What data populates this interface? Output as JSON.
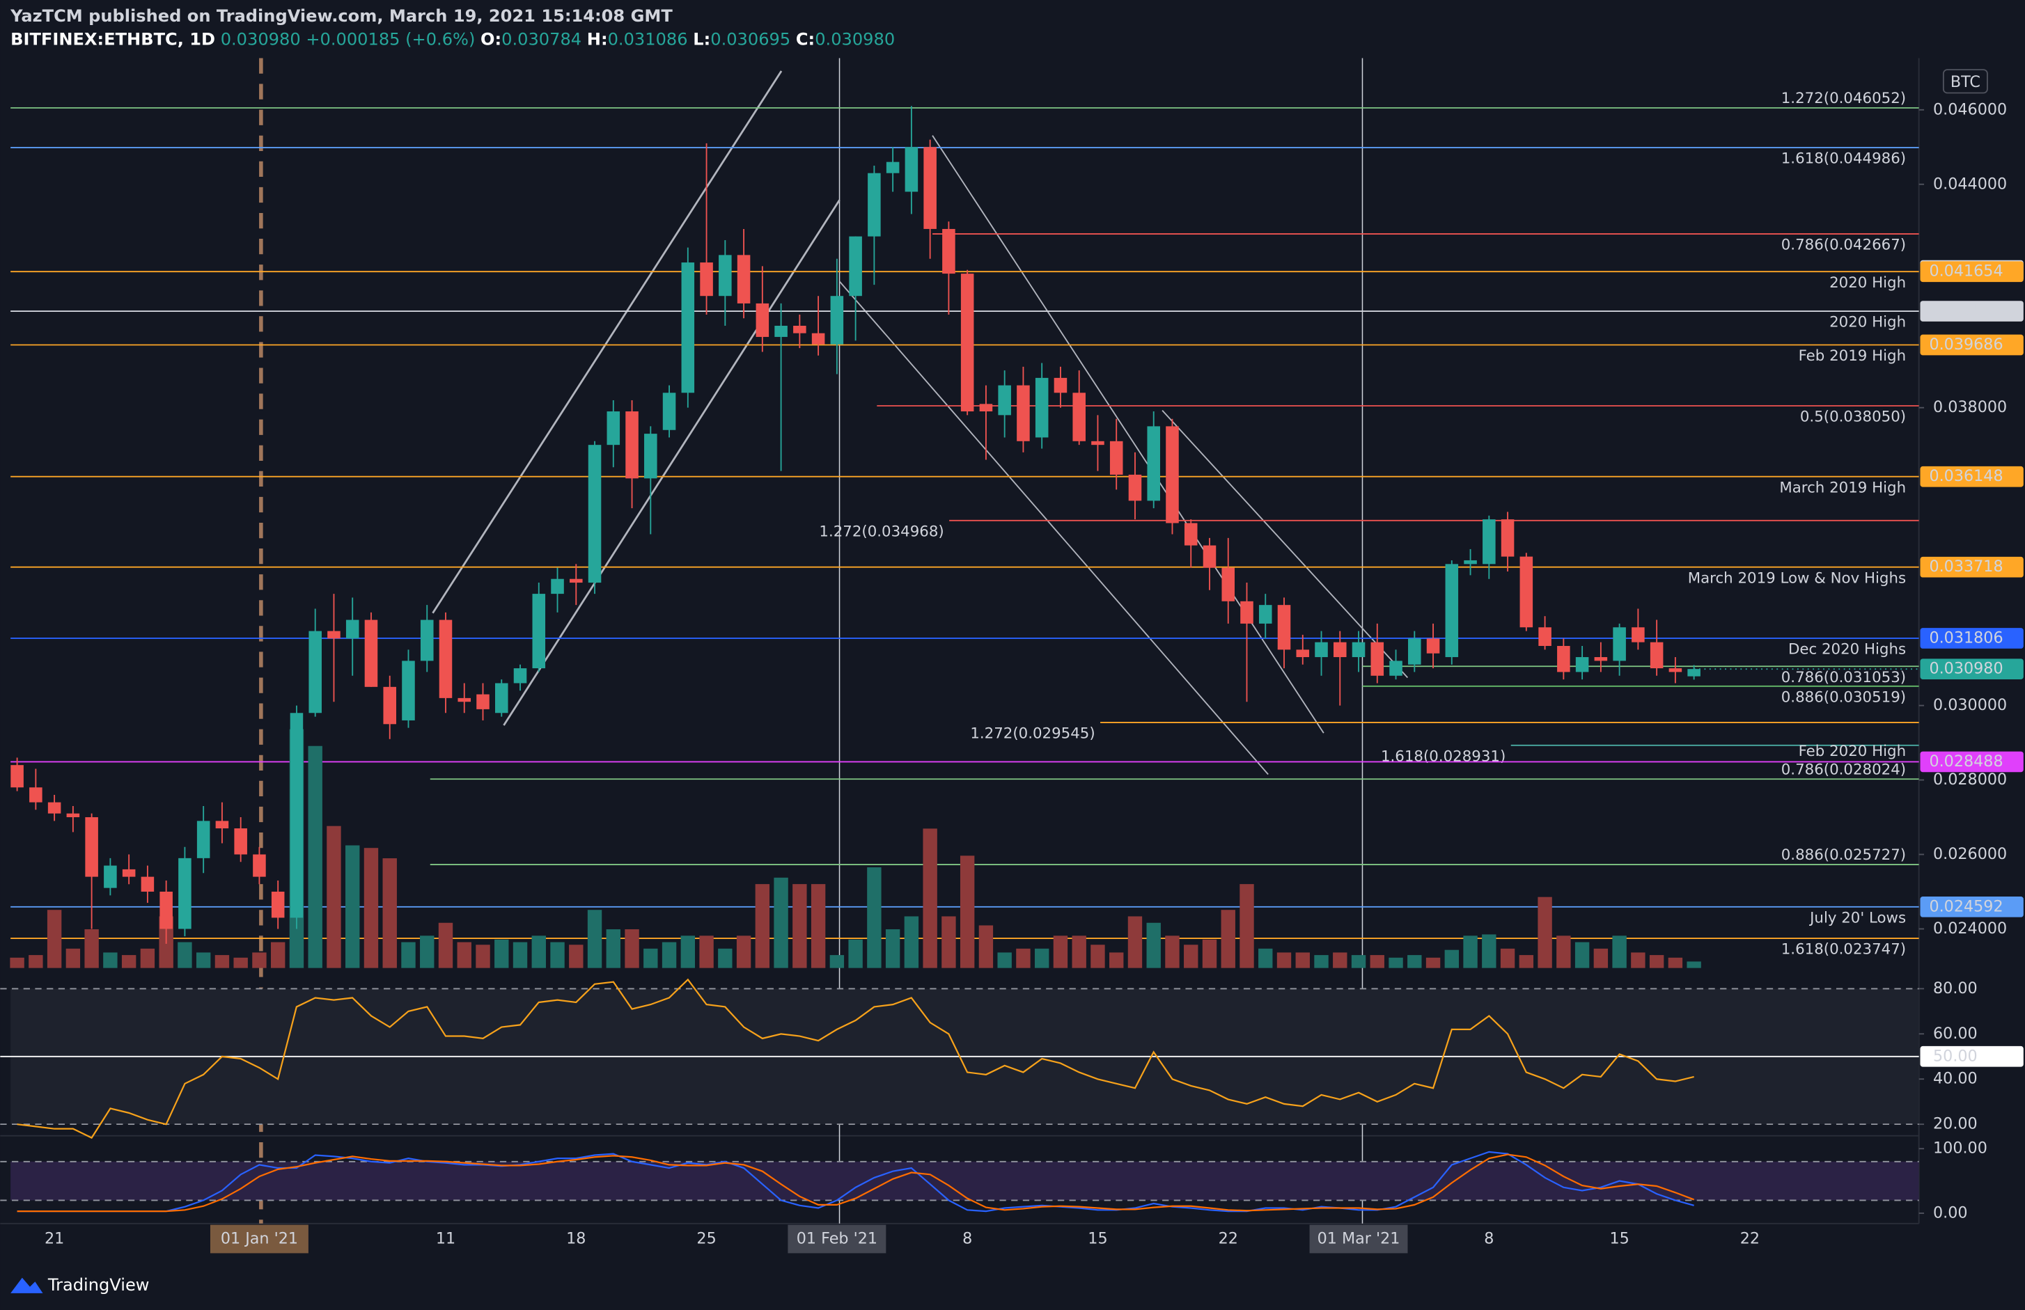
{
  "header": {
    "author": "YazTCM published on TradingView.com, March 19, 2021 15:14:08 GMT",
    "symbol": "BITFINEX:ETHBTC, 1D",
    "last": "0.030980",
    "change": "+0.000185 (+0.6%)",
    "o_label": "O:",
    "open": "0.030784",
    "h_label": "H:",
    "high": "0.031086",
    "l_label": "L:",
    "low": "0.030695",
    "c_label": "C:",
    "close": "0.030980"
  },
  "footer": "TradingView",
  "chart_data": [
    {
      "type": "candlestick",
      "currency": "BTC",
      "categories": [
        null,
        null,
        "21",
        null,
        null,
        null,
        null,
        null,
        null,
        null,
        null,
        null,
        null,
        "01 Jan '21",
        null,
        null,
        null,
        null,
        null,
        null,
        null,
        null,
        null,
        "11",
        null,
        null,
        null,
        null,
        null,
        null,
        "18",
        null,
        null,
        null,
        null,
        null,
        null,
        "25",
        null,
        null,
        null,
        null,
        null,
        null,
        "01 Feb '21",
        null,
        null,
        null,
        null,
        null,
        null,
        "8",
        null,
        null,
        null,
        null,
        null,
        null,
        "15",
        null,
        null,
        null,
        null,
        null,
        null,
        "22",
        null,
        null,
        null,
        null,
        null,
        null,
        "01 Mar '21",
        null,
        null,
        null,
        null,
        null,
        null,
        "8",
        null,
        null,
        null,
        null,
        null,
        null,
        "15",
        null,
        null,
        null,
        null,
        null,
        null,
        "22"
      ],
      "open": [
        0.0284,
        0.0278,
        0.0274,
        0.0271,
        0.027,
        0.0251,
        0.0256,
        0.0254,
        0.025,
        0.024,
        0.0259,
        0.0269,
        0.0267,
        0.026,
        0.025,
        0.0243,
        0.0298,
        0.032,
        0.0318,
        0.0323,
        0.0305,
        0.0296,
        0.0312,
        0.0323,
        0.0302,
        0.0303,
        0.0298,
        0.0306,
        0.031,
        0.033,
        0.0334,
        0.0333,
        0.037,
        0.0379,
        0.0361,
        0.0374,
        0.0384,
        0.0419,
        0.041,
        0.0421,
        0.0408,
        0.0399,
        0.0402,
        0.04,
        0.0397,
        0.041,
        0.0426,
        0.0443,
        0.0438,
        0.045,
        0.0428,
        0.0416,
        0.0381,
        0.0378,
        0.0386,
        0.0372,
        0.0388,
        0.0384,
        0.0371,
        0.0371,
        0.0362,
        0.0355,
        0.0375,
        0.0349,
        0.0343,
        0.0337,
        0.0328,
        0.0322,
        0.0327,
        0.0315,
        0.0313,
        0.0317,
        0.0313,
        0.0317,
        0.0308,
        0.0311,
        0.0318,
        0.0313,
        0.0338,
        0.0338,
        0.035,
        0.034,
        0.0321,
        0.0316,
        0.0309,
        0.0313,
        0.0312,
        0.0321,
        0.0317,
        0.031,
        0.030784,
        null,
        null,
        null
      ],
      "high": [
        0.0286,
        0.0283,
        0.0276,
        0.0273,
        0.0271,
        0.0259,
        0.026,
        0.0257,
        0.0253,
        0.0262,
        0.0273,
        0.0274,
        0.027,
        0.0262,
        0.0253,
        0.03,
        0.0326,
        0.033,
        0.0329,
        0.0325,
        0.0308,
        0.0315,
        0.0327,
        0.0325,
        0.0306,
        0.0306,
        0.0307,
        0.0311,
        0.0333,
        0.0337,
        0.0338,
        0.0371,
        0.0382,
        0.0382,
        0.0375,
        0.0386,
        0.0423,
        0.0451,
        0.0425,
        0.0428,
        0.0418,
        0.0408,
        0.0405,
        0.041,
        0.042,
        0.0426,
        0.0445,
        0.045,
        0.0461,
        0.0452,
        0.043,
        0.0417,
        0.0386,
        0.039,
        0.0391,
        0.0392,
        0.0391,
        0.039,
        0.0378,
        0.0377,
        0.0368,
        0.0379,
        0.0377,
        0.035,
        0.0345,
        0.0345,
        0.0333,
        0.033,
        0.0329,
        0.0319,
        0.032,
        0.032,
        0.032,
        0.0322,
        0.0315,
        0.032,
        0.0322,
        0.0339,
        0.0342,
        0.0351,
        0.0352,
        0.0341,
        0.0324,
        0.0318,
        0.0316,
        0.0317,
        0.0322,
        0.0326,
        0.0323,
        0.0313,
        0.031086,
        null,
        null,
        null
      ],
      "low": [
        0.0277,
        0.0272,
        0.0269,
        0.0266,
        0.024,
        0.0249,
        0.0252,
        0.0247,
        0.0236,
        0.0238,
        0.0255,
        0.0263,
        0.0258,
        0.0252,
        0.024,
        0.024,
        0.0297,
        0.0301,
        0.0308,
        0.0305,
        0.0291,
        0.0294,
        0.0309,
        0.0298,
        0.0298,
        0.0296,
        0.0297,
        0.0304,
        0.0309,
        0.0325,
        0.0327,
        0.033,
        0.0364,
        0.0353,
        0.0346,
        0.0372,
        0.038,
        0.0405,
        0.0402,
        0.0404,
        0.0395,
        0.0363,
        0.0396,
        0.0394,
        0.0389,
        0.0398,
        0.0413,
        0.0438,
        0.0432,
        0.042,
        0.0405,
        0.0378,
        0.0366,
        0.0372,
        0.0368,
        0.0369,
        0.038,
        0.037,
        0.0363,
        0.0358,
        0.035,
        0.0353,
        0.0346,
        0.0337,
        0.0331,
        0.0322,
        0.0301,
        0.0318,
        0.031,
        0.0311,
        0.0308,
        0.03,
        0.0309,
        0.0306,
        0.0307,
        0.0309,
        0.031,
        0.0311,
        0.0335,
        0.0334,
        0.0336,
        0.032,
        0.0315,
        0.0307,
        0.0307,
        0.0309,
        0.0308,
        0.0315,
        0.0308,
        0.0306,
        0.030695,
        null,
        null,
        null
      ],
      "close": [
        0.0278,
        0.0274,
        0.0271,
        0.027,
        0.0254,
        0.0257,
        0.0254,
        0.025,
        0.024,
        0.0259,
        0.0269,
        0.0267,
        0.026,
        0.0254,
        0.0243,
        0.0298,
        0.032,
        0.0318,
        0.0323,
        0.0305,
        0.0295,
        0.0312,
        0.0323,
        0.0302,
        0.0301,
        0.0299,
        0.0306,
        0.031,
        0.033,
        0.0334,
        0.0333,
        0.037,
        0.0379,
        0.0361,
        0.0373,
        0.0384,
        0.0419,
        0.041,
        0.0421,
        0.0408,
        0.0399,
        0.0402,
        0.04,
        0.0397,
        0.041,
        0.0426,
        0.0443,
        0.0446,
        0.045,
        0.0428,
        0.0416,
        0.0379,
        0.0379,
        0.0386,
        0.0371,
        0.0388,
        0.0384,
        0.0371,
        0.037,
        0.0362,
        0.0355,
        0.0375,
        0.0349,
        0.0343,
        0.0337,
        0.0328,
        0.0322,
        0.0327,
        0.0315,
        0.0313,
        0.0317,
        0.0313,
        0.0317,
        0.0308,
        0.0312,
        0.0318,
        0.0314,
        0.0338,
        0.0339,
        0.035,
        0.034,
        0.0321,
        0.0316,
        0.0309,
        0.0313,
        0.0312,
        0.0321,
        0.0317,
        0.031,
        0.0309,
        0.03098,
        null,
        null,
        null
      ],
      "volume": [
        8,
        10,
        45,
        15,
        30,
        12,
        10,
        15,
        40,
        20,
        12,
        10,
        8,
        12,
        20,
        185,
        172,
        110,
        95,
        93,
        85,
        20,
        25,
        35,
        20,
        18,
        22,
        20,
        25,
        20,
        18,
        45,
        30,
        30,
        15,
        20,
        25,
        25,
        15,
        25,
        65,
        70,
        65,
        65,
        10,
        22,
        78,
        30,
        40,
        108,
        40,
        87,
        33,
        12,
        15,
        15,
        25,
        25,
        18,
        12,
        40,
        35,
        25,
        18,
        22,
        45,
        65,
        15,
        12,
        12,
        10,
        12,
        10,
        10,
        8,
        10,
        8,
        14,
        25,
        26,
        15,
        10,
        55,
        25,
        20,
        15,
        25,
        12,
        10,
        8,
        5,
        null,
        null,
        null
      ],
      "colors": {
        "up": "#26a69a",
        "down": "#ef5350",
        "volume_up": "#1f6f68",
        "volume_down": "#8e3a3a"
      },
      "ylim": [
        0.02243,
        0.04739
      ],
      "yticks": [
        {
          "value": 0.046,
          "label": "0.046000"
        },
        {
          "value": 0.044,
          "label": "0.044000"
        },
        {
          "value": 0.038,
          "label": "0.038000"
        },
        {
          "value": 0.03,
          "label": "0.030000"
        },
        {
          "value": 0.028,
          "label": "0.028000"
        },
        {
          "value": 0.026,
          "label": "0.026000"
        },
        {
          "value": 0.024,
          "label": "0.024000"
        }
      ],
      "levels": [
        {
          "value": 0.046052,
          "label": "1.272(0.046052)",
          "color": "#81c784"
        },
        {
          "value": 0.044986,
          "label": "1.618(0.044986)",
          "color": "#5b9cf6"
        },
        {
          "value": 0.042667,
          "label": "0.786(0.042667)",
          "color": "#ef5350"
        },
        {
          "value": 0.041685,
          "color": "#d1d4dc",
          "tag": true
        },
        {
          "value": 0.041654,
          "label": "2020 High",
          "color": "#ffa726",
          "tag": true
        },
        {
          "value": 0.040592,
          "label": "2020 High",
          "color": "#d1d4dc",
          "tag": true
        },
        {
          "value": 0.039686,
          "label": "Feb 2019 High",
          "color": "#ffa726",
          "tag": true
        },
        {
          "value": 0.03805,
          "label": "0.5(0.038050)",
          "color": "#ef5350"
        },
        {
          "value": 0.036148,
          "label": "March 2019 High",
          "color": "#ffa726",
          "tag": true
        },
        {
          "value": 0.034968,
          "label": "1.272(0.034968)",
          "color": "#ef5350"
        },
        {
          "value": 0.033718,
          "label": "March 2019 Low & Nov Highs",
          "color": "#ffa726",
          "tag": true
        },
        {
          "value": 0.031806,
          "label": "Dec 2020 Highs",
          "color": "#2962ff",
          "tag": true
        },
        {
          "value": 0.031053,
          "label": "0.786(0.031053)",
          "color": "#81c784"
        },
        {
          "value": 0.030519,
          "label": "0.886(0.030519)",
          "color": "#66bb6a"
        },
        {
          "value": 0.029545,
          "label": "1.272(0.029545)",
          "color": "#ffa726"
        },
        {
          "value": 0.028931,
          "label": "1.618(0.028931)",
          "note": "Feb 2020 High",
          "color": "#4db6ac"
        },
        {
          "value": 0.028488,
          "color": "#e040fb",
          "tag": true
        },
        {
          "value": 0.028024,
          "label": "0.786(0.028024)",
          "color": "#81c784"
        },
        {
          "value": 0.025727,
          "label": "0.886(0.025727)",
          "color": "#81c784"
        },
        {
          "value": 0.024592,
          "label": "July 20' Lows",
          "color": "#5b9cf6",
          "tag": true
        },
        {
          "value": 0.023747,
          "label": "1.618(0.023747)",
          "color": "#ffa726"
        }
      ]
    },
    {
      "type": "line",
      "series": [
        {
          "color": "#f7a21b",
          "values": [
            20,
            19,
            18,
            18,
            14,
            27,
            25,
            22,
            20,
            38,
            42,
            50,
            49,
            45,
            40,
            72,
            76,
            75,
            76,
            68,
            63,
            70,
            72,
            59,
            59,
            58,
            63,
            64,
            74,
            75,
            74,
            82,
            83,
            71,
            73,
            76,
            84,
            73,
            72,
            63,
            58,
            60,
            59,
            57,
            62,
            66,
            72,
            73,
            76,
            65,
            60,
            43,
            42,
            46,
            43,
            49,
            47,
            43,
            40,
            38,
            36,
            52,
            40,
            37,
            35,
            31,
            29,
            32,
            29,
            28,
            33,
            31,
            34,
            30,
            33,
            38,
            36,
            62,
            62,
            68,
            60,
            43,
            40,
            36,
            42,
            41,
            51,
            48,
            40,
            39,
            41
          ]
        }
      ],
      "ylim": [
        14.9,
        80.6
      ],
      "yticks": [
        {
          "value": 80,
          "label": "80.00"
        },
        {
          "value": 60,
          "label": "60.00"
        },
        {
          "value": 40,
          "label": "40.00"
        },
        {
          "value": 20,
          "label": "20.00"
        }
      ],
      "hlines": [
        {
          "value": 80,
          "style": "dashed"
        },
        {
          "value": 50,
          "style": "solid",
          "label": "50.00"
        },
        {
          "value": 20,
          "style": "dashed"
        }
      ],
      "band": {
        "from": 20,
        "to": 80,
        "color": "#1e222d"
      }
    },
    {
      "type": "line",
      "series": [
        {
          "color": "#2962ff",
          "values": [
            3,
            3,
            3,
            3,
            3,
            3,
            3,
            3,
            3,
            10,
            20,
            35,
            60,
            75,
            70,
            70,
            90,
            88,
            85,
            80,
            78,
            85,
            80,
            78,
            75,
            75,
            73,
            75,
            80,
            85,
            85,
            90,
            92,
            80,
            75,
            70,
            78,
            75,
            80,
            70,
            45,
            20,
            12,
            8,
            20,
            40,
            55,
            65,
            70,
            45,
            20,
            5,
            3,
            8,
            10,
            12,
            10,
            8,
            5,
            5,
            8,
            15,
            10,
            8,
            5,
            3,
            3,
            8,
            8,
            5,
            10,
            8,
            5,
            5,
            10,
            25,
            40,
            75,
            85,
            95,
            92,
            75,
            55,
            40,
            35,
            40,
            50,
            45,
            30,
            20,
            12
          ]
        },
        {
          "color": "#ff6d00",
          "values": [
            3,
            3,
            3,
            3,
            3,
            3,
            3,
            3,
            3,
            5,
            11,
            22,
            38,
            57,
            68,
            72,
            78,
            83,
            88,
            84,
            81,
            81,
            81,
            80,
            78,
            76,
            74,
            74,
            76,
            80,
            83,
            87,
            89,
            87,
            82,
            75,
            74,
            74,
            78,
            75,
            65,
            45,
            26,
            13,
            13,
            23,
            38,
            53,
            63,
            60,
            43,
            23,
            9,
            5,
            7,
            10,
            11,
            10,
            8,
            6,
            6,
            9,
            11,
            11,
            8,
            5,
            4,
            5,
            6,
            7,
            8,
            8,
            8,
            6,
            7,
            13,
            25,
            47,
            67,
            85,
            91,
            87,
            74,
            57,
            43,
            38,
            42,
            45,
            42,
            32,
            21
          ]
        }
      ],
      "ylim": [
        -16,
        120
      ],
      "yticks": [
        {
          "value": 100,
          "label": "100.00"
        },
        {
          "value": 0,
          "label": "0.00"
        }
      ],
      "hlines": [
        {
          "value": 80,
          "style": "dashed"
        },
        {
          "value": 20,
          "style": "dashed"
        }
      ],
      "band": {
        "from": 20,
        "to": 80,
        "color": "#2b2245"
      }
    }
  ]
}
